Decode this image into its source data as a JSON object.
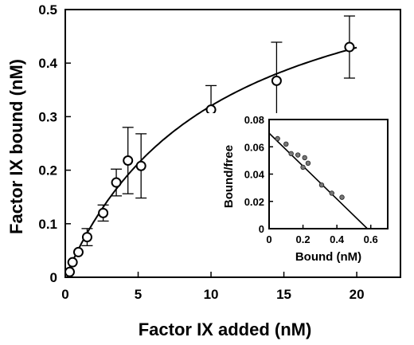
{
  "chart_data": [
    {
      "type": "scatter",
      "title": "",
      "xlabel": "Factor IX added (nM)",
      "ylabel": "Factor IX bound (nM)",
      "xlim": [
        0,
        23
      ],
      "ylim": [
        0,
        0.5
      ],
      "xticks": [
        0,
        5,
        10,
        15,
        20
      ],
      "yticks": [
        0,
        0.1,
        0.2,
        0.3,
        0.4,
        0.5
      ],
      "ytick_labels": [
        "0",
        "0.1",
        "0.2",
        "0.3",
        "0.4",
        "0.5"
      ],
      "grid": false,
      "points": [
        {
          "x": 0.3,
          "y": 0.01,
          "err": 0.0
        },
        {
          "x": 0.5,
          "y": 0.028,
          "err": 0.0
        },
        {
          "x": 0.9,
          "y": 0.047,
          "err": 0.0
        },
        {
          "x": 1.5,
          "y": 0.075,
          "err": 0.016
        },
        {
          "x": 2.6,
          "y": 0.12,
          "err": 0.015
        },
        {
          "x": 3.5,
          "y": 0.177,
          "err": 0.025
        },
        {
          "x": 4.3,
          "y": 0.218,
          "err": 0.062
        },
        {
          "x": 5.2,
          "y": 0.208,
          "err": 0.06
        },
        {
          "x": 10.0,
          "y": 0.313,
          "err": 0.045
        },
        {
          "x": 14.5,
          "y": 0.367,
          "err": 0.072
        },
        {
          "x": 19.5,
          "y": 0.43,
          "err": 0.058
        }
      ],
      "fit_curve": {
        "type": "hyperbolic",
        "Bmax": 0.65,
        "Kd": 10.3
      }
    },
    {
      "type": "scatter",
      "title": "",
      "xlabel": "Bound (nM)",
      "ylabel": "Bound/free",
      "xlim": [
        0,
        0.7
      ],
      "ylim": [
        0,
        0.08
      ],
      "xticks": [
        0,
        0.2,
        0.4,
        0.6
      ],
      "xtick_labels": [
        "0",
        "0.2",
        "0.4",
        "0.6"
      ],
      "yticks": [
        0,
        0.02,
        0.04,
        0.06,
        0.08
      ],
      "ytick_labels": [
        "0",
        "0.02",
        "0.04",
        "0.06",
        "0.08"
      ],
      "grid": false,
      "points": [
        {
          "x": 0.05,
          "y": 0.066
        },
        {
          "x": 0.1,
          "y": 0.062
        },
        {
          "x": 0.13,
          "y": 0.055
        },
        {
          "x": 0.17,
          "y": 0.054
        },
        {
          "x": 0.21,
          "y": 0.052
        },
        {
          "x": 0.2,
          "y": 0.045
        },
        {
          "x": 0.23,
          "y": 0.048
        },
        {
          "x": 0.31,
          "y": 0.032
        },
        {
          "x": 0.37,
          "y": 0.026
        },
        {
          "x": 0.43,
          "y": 0.023
        }
      ],
      "fit_line": {
        "x": [
          0,
          0.58
        ],
        "y": [
          0.07,
          0
        ]
      }
    }
  ]
}
